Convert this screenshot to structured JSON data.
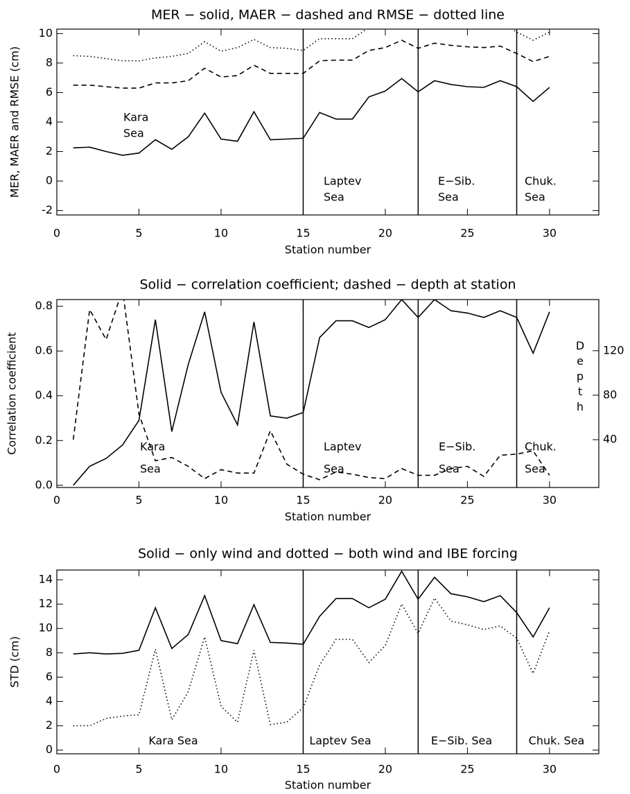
{
  "chart_data": [
    {
      "type": "line",
      "title": "MER − solid, MAER − dashed and RMSE − dotted line",
      "xlabel": "Station number",
      "ylabel": "MER, MAER and RMSE (cm)",
      "xlim": [
        0,
        33
      ],
      "ylim": [
        -2.3,
        10.3
      ],
      "xticks": [
        0,
        5,
        10,
        15,
        20,
        25,
        30
      ],
      "yticks": [
        -2,
        0,
        2,
        4,
        6,
        8,
        10
      ],
      "x": [
        1,
        2,
        3,
        4,
        5,
        6,
        7,
        8,
        9,
        10,
        11,
        12,
        13,
        14,
        15,
        16,
        17,
        18,
        19,
        20,
        21,
        22,
        23,
        24,
        25,
        26,
        27,
        28,
        29,
        30
      ],
      "separators": [
        15,
        22,
        28
      ],
      "region_labels": [
        [
          "Kara",
          "Sea"
        ],
        [
          "Laptev",
          "Sea"
        ],
        [
          "E−Sib.",
          "Sea"
        ],
        [
          "Chuk.",
          "Sea"
        ]
      ],
      "series": [
        {
          "color": "#000000",
          "dash": "solid",
          "values": [
            2.25,
            2.3,
            2.0,
            1.75,
            1.9,
            2.8,
            2.15,
            3.0,
            4.6,
            2.85,
            2.7,
            4.7,
            2.8,
            2.85,
            2.9,
            4.65,
            4.2,
            4.2,
            5.7,
            6.1,
            6.95,
            6.05,
            6.8,
            6.55,
            6.4,
            6.35,
            6.8,
            6.4,
            5.4,
            6.35
          ]
        },
        {
          "color": "#000000",
          "dash": "dashed",
          "values": [
            6.5,
            6.5,
            6.4,
            6.3,
            6.3,
            6.65,
            6.65,
            6.8,
            7.65,
            7.05,
            7.15,
            7.85,
            7.3,
            7.3,
            7.3,
            8.15,
            8.2,
            8.2,
            8.85,
            9.05,
            9.55,
            9.0,
            9.35,
            9.2,
            9.1,
            9.05,
            9.15,
            8.65,
            8.1,
            8.45
          ]
        },
        {
          "color": "#000000",
          "dash": "dotted",
          "values": [
            8.5,
            8.45,
            8.3,
            8.15,
            8.15,
            8.35,
            8.45,
            8.65,
            9.45,
            8.8,
            9.05,
            9.6,
            9.05,
            9.0,
            8.85,
            9.65,
            9.65,
            9.65,
            10.4,
            10.8,
            11.3,
            10.7,
            11.0,
            10.9,
            10.8,
            10.7,
            10.8,
            10.1,
            9.55,
            10.1
          ]
        }
      ]
    },
    {
      "type": "line",
      "title": "Solid − correlation coefficient; dashed − depth at station",
      "xlabel": "Station number",
      "ylabel": "Correlation coefficient",
      "y2label": "Depth",
      "xlim": [
        0,
        33
      ],
      "ylim": [
        -0.01,
        0.83
      ],
      "y2lim": [
        -3,
        166
      ],
      "xticks": [
        0,
        5,
        10,
        15,
        20,
        25,
        30
      ],
      "yticks": [
        {
          "value": 0,
          "label": "0.0"
        },
        0.2,
        0.4,
        0.6,
        0.8
      ],
      "y2ticks": [
        40,
        80,
        120
      ],
      "x": [
        1,
        2,
        3,
        4,
        5,
        6,
        7,
        8,
        9,
        10,
        11,
        12,
        13,
        14,
        15,
        16,
        17,
        18,
        19,
        20,
        21,
        22,
        23,
        24,
        25,
        26,
        27,
        28,
        29,
        30
      ],
      "separators": [
        15,
        22,
        28
      ],
      "region_labels": [
        [
          "Kara",
          "Sea"
        ],
        [
          "Laptev",
          "Sea"
        ],
        [
          "E−Sib.",
          "Sea"
        ],
        [
          "Chuk.",
          "Sea"
        ]
      ],
      "series": [
        {
          "color": "#000000",
          "dash": "solid",
          "values": [
            0.0,
            0.085,
            0.12,
            0.18,
            0.29,
            0.74,
            0.24,
            0.54,
            0.775,
            0.415,
            0.27,
            0.73,
            0.31,
            0.3,
            0.325,
            0.66,
            0.735,
            0.735,
            0.705,
            0.74,
            0.83,
            0.75,
            0.83,
            0.78,
            0.77,
            0.75,
            0.78,
            0.75,
            0.59,
            0.775
          ]
        },
        {
          "color": "#000000",
          "dash": "dashed",
          "axis": "y2",
          "values": [
            40,
            157,
            130,
            175,
            63,
            21,
            24,
            16,
            5,
            13,
            10,
            10,
            48,
            18,
            9,
            4,
            11,
            9,
            6,
            5,
            14,
            8,
            8,
            14,
            16,
            7,
            26,
            27,
            30,
            8
          ]
        }
      ]
    },
    {
      "type": "line",
      "title": "Solid − only wind and dotted − both wind and IBE forcing",
      "xlabel": "Station number",
      "ylabel": "STD (cm)",
      "xlim": [
        0,
        33
      ],
      "ylim": [
        -0.3,
        14.8
      ],
      "xticks": [
        0,
        5,
        10,
        15,
        20,
        25,
        30
      ],
      "yticks": [
        0,
        2,
        4,
        6,
        8,
        10,
        12,
        14
      ],
      "x": [
        1,
        2,
        3,
        4,
        5,
        6,
        7,
        8,
        9,
        10,
        11,
        12,
        13,
        14,
        15,
        16,
        17,
        18,
        19,
        20,
        21,
        22,
        23,
        24,
        25,
        26,
        27,
        28,
        29,
        30
      ],
      "separators": [
        15,
        22,
        28
      ],
      "region_labels": [
        "Kara Sea",
        "Laptev Sea",
        "E−Sib. Sea",
        "Chuk. Sea"
      ],
      "series": [
        {
          "color": "#000000",
          "dash": "solid",
          "values": [
            7.9,
            8.0,
            7.9,
            7.95,
            8.2,
            11.7,
            8.35,
            9.5,
            12.7,
            9.0,
            8.75,
            11.95,
            8.85,
            8.8,
            8.7,
            11.0,
            12.45,
            12.45,
            11.7,
            12.4,
            14.7,
            12.4,
            14.2,
            12.85,
            12.6,
            12.2,
            12.7,
            11.3,
            9.3,
            11.7
          ]
        },
        {
          "color": "#000000",
          "dash": "dotted",
          "values": [
            2.0,
            2.0,
            2.6,
            2.8,
            2.9,
            8.3,
            2.5,
            4.8,
            9.3,
            3.6,
            2.3,
            8.2,
            2.1,
            2.3,
            3.5,
            7.0,
            9.1,
            9.1,
            7.2,
            8.6,
            12.0,
            9.6,
            12.5,
            10.6,
            10.3,
            9.9,
            10.2,
            9.2,
            6.3,
            9.8
          ]
        }
      ]
    }
  ]
}
